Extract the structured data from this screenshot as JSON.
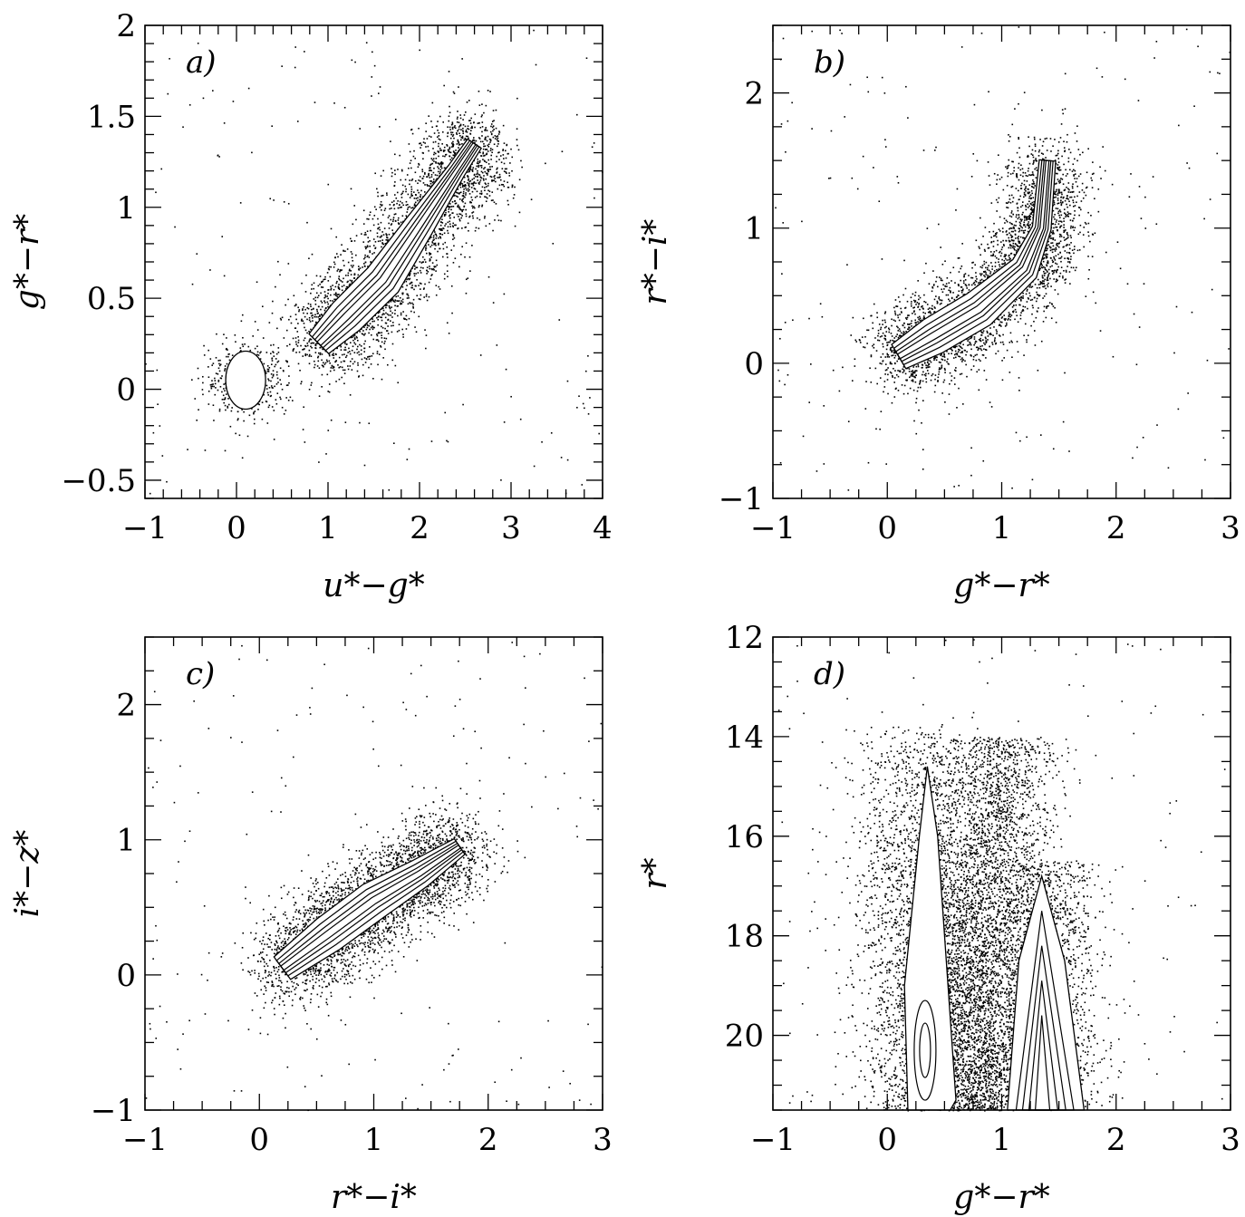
{
  "chart_data": [
    {
      "type": "scatter",
      "panel_label": "a)",
      "xlabel": "u*−g*",
      "ylabel": "g*−r*",
      "xlim": [
        -1,
        4
      ],
      "ylim": [
        -0.6,
        2
      ],
      "xticks": [
        -1,
        0,
        1,
        2,
        3,
        4
      ],
      "yticks": [
        -0.5,
        0,
        0.5,
        1,
        1.5,
        2
      ],
      "xtick_labels": [
        "−1",
        "0",
        "1",
        "2",
        "3",
        "4"
      ],
      "ytick_labels": [
        "−0.5",
        "0",
        "0.5",
        "1",
        "1.5",
        "2"
      ],
      "density_ridge": [
        [
          0.9,
          0.25
        ],
        [
          1.2,
          0.4
        ],
        [
          1.6,
          0.6
        ],
        [
          2.0,
          0.9
        ],
        [
          2.4,
          1.2
        ],
        [
          2.6,
          1.35
        ]
      ],
      "secondary_cluster": [
        0.1,
        0.05
      ],
      "contours": "nested density contours along the stellar locus"
    },
    {
      "type": "scatter",
      "panel_label": "b)",
      "xlabel": "g*−r*",
      "ylabel": "r*−i*",
      "xlim": [
        -1,
        3
      ],
      "ylim": [
        -1,
        2.5
      ],
      "xticks": [
        -1,
        0,
        1,
        2,
        3
      ],
      "yticks": [
        -1,
        0,
        1,
        2
      ],
      "xtick_labels": [
        "−1",
        "0",
        "1",
        "2",
        "3"
      ],
      "ytick_labels": [
        "−1",
        "0",
        "1",
        "2"
      ],
      "density_ridge": [
        [
          0.1,
          0.05
        ],
        [
          0.4,
          0.2
        ],
        [
          0.8,
          0.4
        ],
        [
          1.2,
          0.7
        ],
        [
          1.35,
          1.0
        ],
        [
          1.4,
          1.5
        ]
      ],
      "contours": "nested density contours along the stellar locus"
    },
    {
      "type": "scatter",
      "panel_label": "c)",
      "xlabel": "r*−i*",
      "ylabel": "i*−z*",
      "xlim": [
        -1,
        3
      ],
      "ylim": [
        -1,
        2.5
      ],
      "xticks": [
        -1,
        0,
        1,
        2,
        3
      ],
      "yticks": [
        -1,
        0,
        1,
        2
      ],
      "xtick_labels": [
        "−1",
        "0",
        "1",
        "2",
        "3"
      ],
      "ytick_labels": [
        "−1",
        "0",
        "1",
        "2"
      ],
      "density_ridge": [
        [
          0.2,
          0.05
        ],
        [
          0.6,
          0.3
        ],
        [
          1.0,
          0.55
        ],
        [
          1.4,
          0.75
        ],
        [
          1.75,
          0.95
        ]
      ],
      "contours": "nested density contours along the stellar locus"
    },
    {
      "type": "scatter",
      "panel_label": "d)",
      "xlabel": "g*−r*",
      "ylabel": "r*",
      "xlim": [
        -1,
        3
      ],
      "ylim": [
        21.5,
        12
      ],
      "xticks": [
        -1,
        0,
        1,
        2,
        3
      ],
      "yticks": [
        12,
        14,
        16,
        18,
        20
      ],
      "xtick_labels": [
        "−1",
        "0",
        "1",
        "2",
        "3"
      ],
      "ytick_labels": [
        "12",
        "14",
        "16",
        "18",
        "20"
      ],
      "y_inverted": true,
      "features": "two vertical plumes: blue plume near g*−r*≈0.35 from r*≈14.5 to 21.5, red plume near g*−r*≈1.35 from r*≈16.8 to 21.5",
      "contours": "nested density contours in each plume"
    }
  ]
}
